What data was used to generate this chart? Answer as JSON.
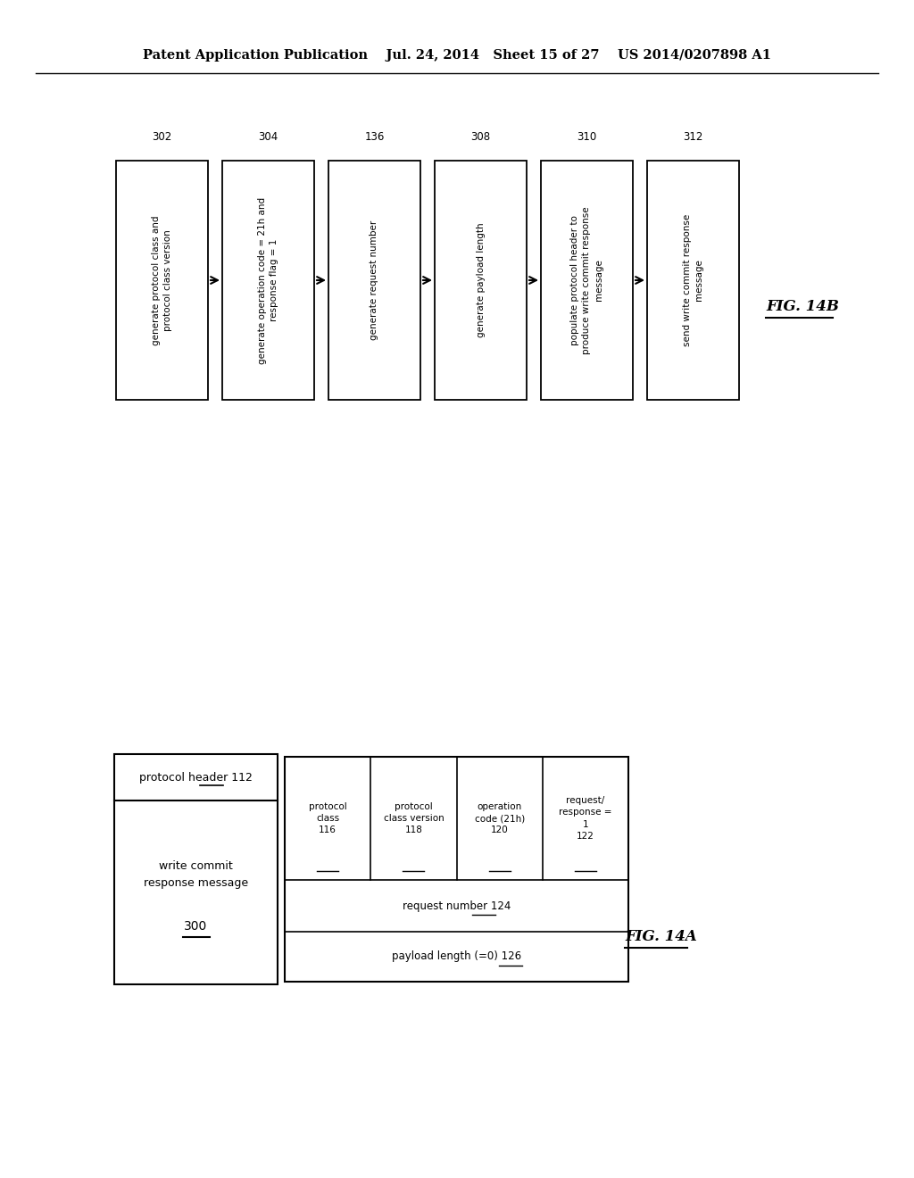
{
  "bg_color": "#ffffff",
  "header_text": "Patent Application Publication    Jul. 24, 2014   Sheet 15 of 27    US 2014/0207898 A1",
  "fig14b_boxes": [
    {
      "num": "302",
      "text": "generate protocol class and\nprotocol class version"
    },
    {
      "num": "304",
      "text": "generate operation code = 21h and\nresponse flag = 1"
    },
    {
      "num": "136",
      "text": "generate request number"
    },
    {
      "num": "308",
      "text": "generate payload length"
    },
    {
      "num": "310",
      "text": "populate protocol header to\nproduce write commit response\nmessage"
    },
    {
      "num": "312",
      "text": "send write commit response\nmessage"
    }
  ],
  "fig14b_label": "FIG. 14B",
  "fig14a_label": "FIG. 14A",
  "outer_header": "protocol header 112",
  "outer_body": "write commit\nresponse message",
  "outer_num": "300",
  "row1_cols": [
    {
      "label": "protocol\nclass",
      "num": "116"
    },
    {
      "label": "protocol\nclass version",
      "num": "118"
    },
    {
      "label": "operation\ncode (21h)",
      "num": "120"
    },
    {
      "label": "request/\nresponse =\n1",
      "num": "122"
    }
  ],
  "row2_label": "request number",
  "row2_num": "124",
  "row3_label": "payload length (=0)",
  "row3_num": "126"
}
